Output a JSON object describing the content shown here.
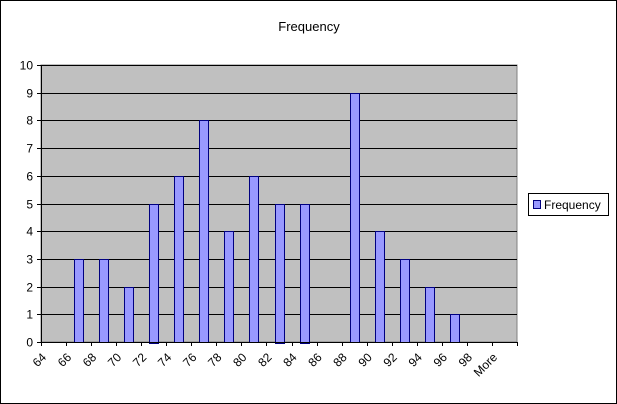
{
  "chart_data": {
    "type": "bar",
    "title": "Frequency",
    "xlabel": "",
    "ylabel": "",
    "categories": [
      "64",
      "66",
      "68",
      "70",
      "72",
      "74",
      "76",
      "78",
      "80",
      "82",
      "84",
      "86",
      "88",
      "90",
      "92",
      "94",
      "96",
      "98",
      "More"
    ],
    "series": [
      {
        "name": "Frequency",
        "values": [
          0,
          3,
          3,
          2,
          5,
          6,
          8,
          4,
          6,
          5,
          5,
          0,
          9,
          4,
          3,
          2,
          1,
          0,
          0
        ]
      }
    ],
    "ylim": [
      0,
      10
    ],
    "yticks": [
      "0",
      "1",
      "2",
      "3",
      "4",
      "5",
      "6",
      "7",
      "8",
      "9",
      "10"
    ],
    "grid": true,
    "legend_position": "right",
    "colors": {
      "bar_fill": "#9999FF",
      "bar_stroke": "#000080",
      "plot_background": "#C0C0C0",
      "gridline": "#000000"
    }
  }
}
